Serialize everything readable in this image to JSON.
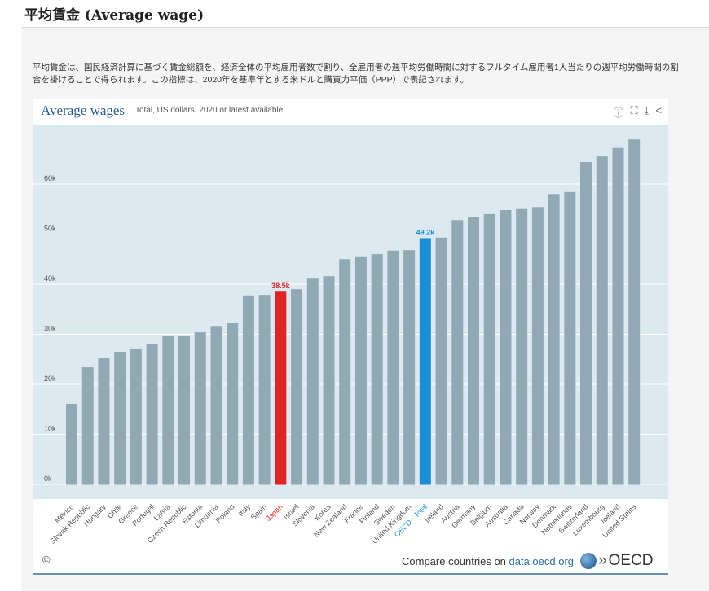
{
  "page_title": "平均賃金 (Average wage)",
  "description": "平均賃金は、国民経済計算に基づく賃金総額を、経済全体の平均雇用者数で割り、全雇用者の週平均労働時間に対するフルタイム雇用者1人当たりの週平均労働時間の割合を掛けることで得られます。この指標は、2020年を基準年とする米ドルと購買力平価（PPP）で表記されます。",
  "chart_header": {
    "title": "Average wages",
    "subtitle": "Total, US dollars, 2020 or latest available",
    "icons": [
      "info-icon",
      "fullscreen-icon",
      "download-icon",
      "share-icon"
    ]
  },
  "footer": {
    "copyright": "©",
    "compare_text": "Compare countries on ",
    "link": "data.oecd.org",
    "logo_text": "OECD"
  },
  "colors": {
    "bar": "#91a8b5",
    "japan": "#e02424",
    "oecd": "#1a8fd8",
    "plot_bg": "#dde9f1"
  },
  "chart_data": {
    "type": "bar",
    "title": "Average wages",
    "subtitle": "Total, US dollars, 2020 or latest available",
    "ylim": [
      0,
      70000
    ],
    "yticks": [
      0,
      10000,
      20000,
      30000,
      40000,
      50000,
      60000
    ],
    "ytick_labels": [
      "0k",
      "10k",
      "20k",
      "30k",
      "40k",
      "50k",
      "60k"
    ],
    "grid": true,
    "categories": [
      "Mexico",
      "Slovak Republic",
      "Hungary",
      "Chile",
      "Greece",
      "Portugal",
      "Latvia",
      "Czech Republic",
      "Estonia",
      "Lithuania",
      "Poland",
      "Italy",
      "Spain",
      "Japan",
      "Israel",
      "Slovenia",
      "Korea",
      "New Zealand",
      "France",
      "Finland",
      "Sweden",
      "United Kingdom",
      "OECD - Total",
      "Ireland",
      "Austria",
      "Germany",
      "Belgium",
      "Australia",
      "Canada",
      "Norway",
      "Denmark",
      "Netherlands",
      "Switzerland",
      "Luxembourg",
      "Iceland",
      "United States"
    ],
    "values": [
      16100,
      23400,
      25200,
      26500,
      27000,
      28100,
      29600,
      29600,
      30400,
      31500,
      32200,
      37600,
      37700,
      38500,
      39000,
      41100,
      41600,
      45000,
      45400,
      46000,
      46700,
      46800,
      49200,
      49300,
      52800,
      53500,
      54000,
      54800,
      55000,
      55400,
      58000,
      58400,
      64400,
      65500,
      67200,
      68900
    ],
    "highlights": [
      {
        "category": "Japan",
        "label": "38.5k",
        "color": "#e02424"
      },
      {
        "category": "OECD - Total",
        "label": "49.2k",
        "color": "#1a8fd8"
      }
    ]
  }
}
